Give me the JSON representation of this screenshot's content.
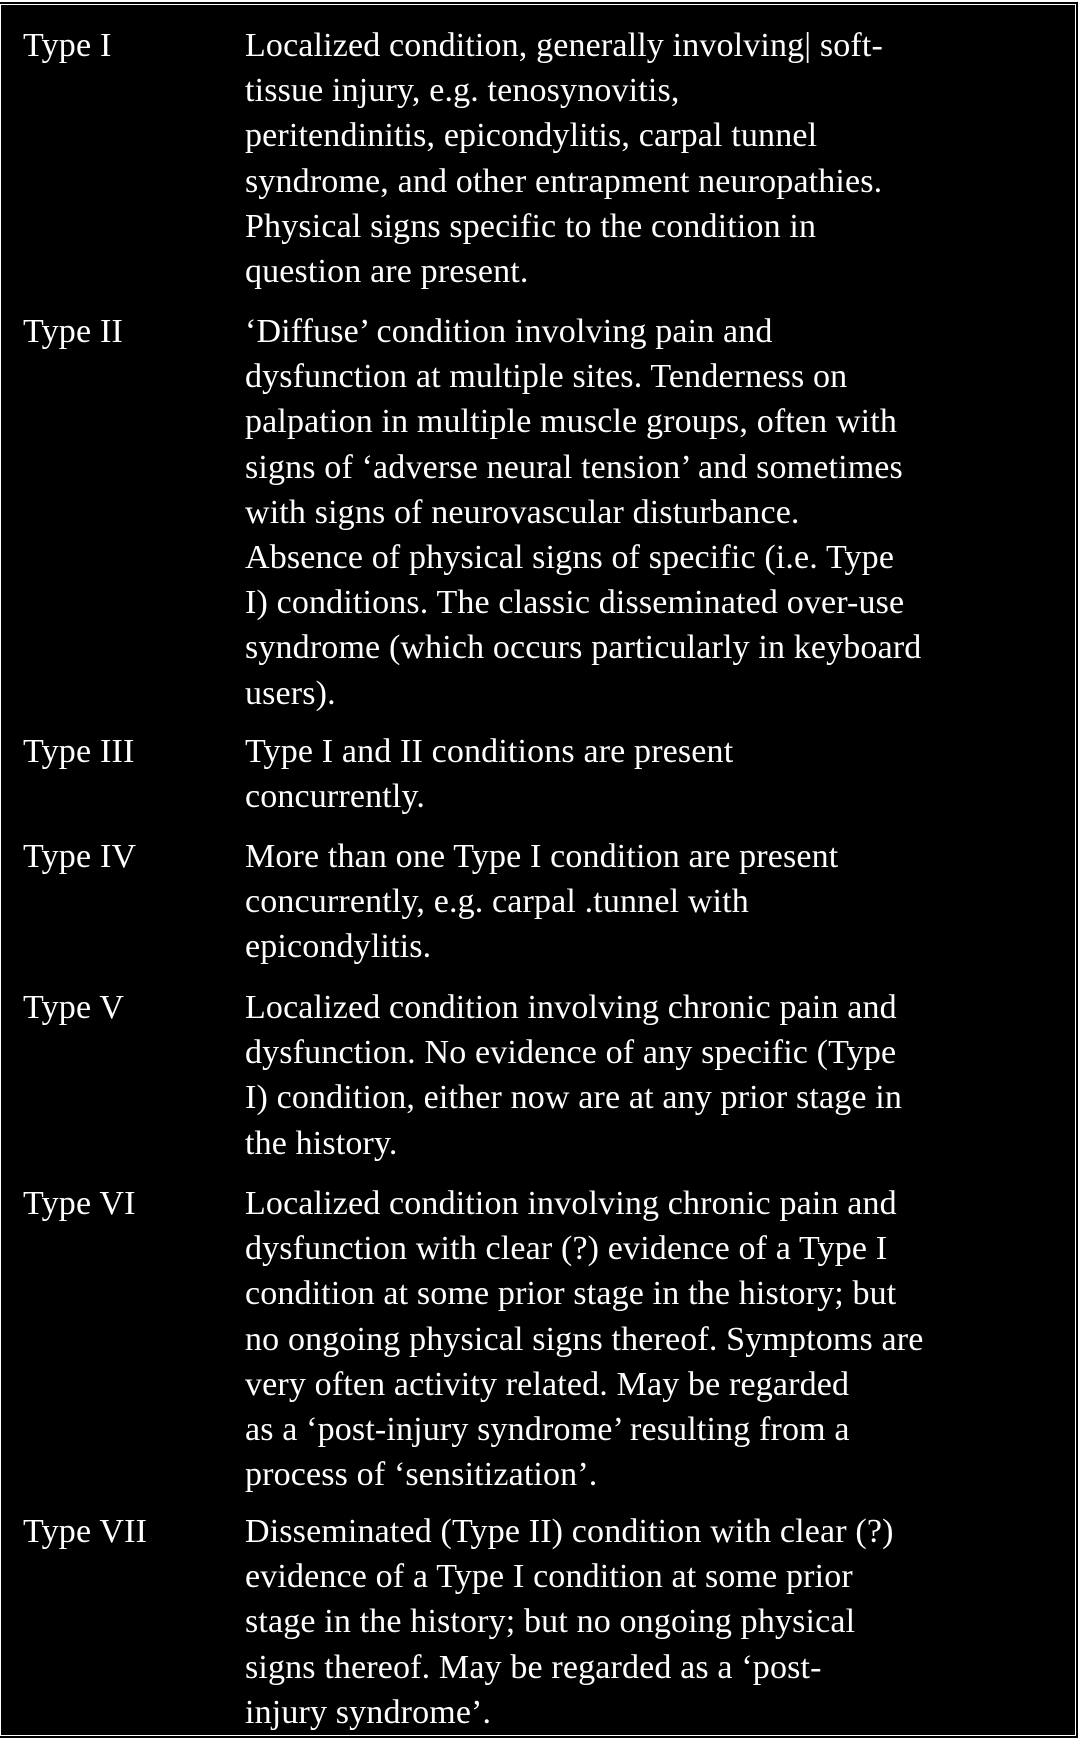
{
  "table": {
    "rows": [
      {
        "type": "Type I",
        "description": "Localized condition, generally involving| soft-\ntissue injury, e.g. tenosynovitis,\nperitendinitis, epicondylitis, carpal tunnel\nsyndrome, and other entrapment neuropathies.\nPhysical signs specific to the condition in\nquestion are present."
      },
      {
        "type": "Type II",
        "description": "‘Diffuse’ condition involving pain and\ndysfunction at multiple sites. Tenderness on\npalpation in multiple muscle groups, often with\nsigns of ‘adverse neural tension’ and sometimes\nwith signs of neurovascular disturbance.\nAbsence of physical signs of specific (i.e. Type\nI) conditions. The classic disseminated over-use\nsyndrome (which occurs particularly in keyboard\nusers)."
      },
      {
        "type": "Type III",
        "description": "Type I and II conditions are present\nconcurrently."
      },
      {
        "type": "Type IV",
        "description": "More than one Type I condition are present\nconcurrently, e.g. carpal .tunnel with\nepicondylitis."
      },
      {
        "type": "Type V",
        "description": "Localized condition involving chronic pain and\ndysfunction. No evidence of any specific (Type\nI) condition, either now are at any prior stage in\nthe history."
      },
      {
        "type": "Type VI",
        "description": "Localized condition involving chronic pain and\ndysfunction with clear (?) evidence of a Type I\ncondition at some prior stage in the history; but\nno ongoing physical signs thereof. Symptoms are\nvery often activity related. May be regarded\nas a ‘post-injury syndrome’ resulting from a\nprocess of ‘sensitization’."
      },
      {
        "type": "Type VII",
        "description": "Disseminated (Type II) condition with clear (?)\nevidence of a Type I condition at some prior\nstage in the history; but no ongoing physical\nsigns thereof. May be regarded as a ‘post-\ninjury syndrome’."
      }
    ]
  }
}
